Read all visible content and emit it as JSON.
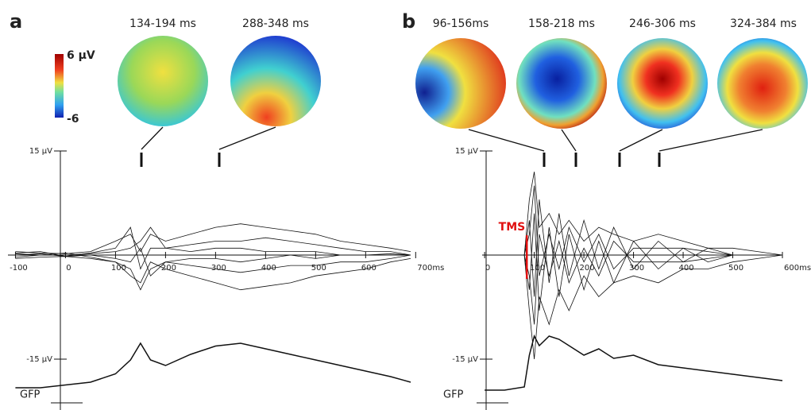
{
  "chart_data": [
    {
      "type": "line",
      "panel": "a",
      "x": [
        -100,
        -50,
        0,
        50,
        100,
        130,
        150,
        170,
        200,
        250,
        300,
        350,
        400,
        450,
        500,
        550,
        600,
        650,
        690
      ],
      "xlim": [
        -115,
        690
      ],
      "xticks": [
        -100,
        0,
        100,
        200,
        300,
        400,
        500,
        600,
        {
          "value": 700,
          "label": "700ms"
        }
      ],
      "ylim": [
        -15,
        15
      ],
      "yticks": [
        {
          "value": 15,
          "label": "15 µV"
        },
        {
          "value": -15,
          "label": "-15 µV"
        }
      ],
      "series": [
        {
          "color": "#111111",
          "values": [
            0.5,
            0.3,
            0.2,
            0.5,
            2,
            3,
            0.5,
            3,
            2,
            3,
            4,
            4.5,
            4,
            3.5,
            3,
            2,
            1.5,
            1,
            0.5
          ]
        },
        {
          "color": "#111111",
          "values": [
            -0.5,
            -0.3,
            -0.2,
            -0.5,
            -1,
            -3,
            -4,
            -1,
            -2,
            -3,
            -4,
            -5,
            -4.5,
            -4,
            -3,
            -2.5,
            -2,
            -1,
            -0.5
          ]
        },
        {
          "color": "#111111",
          "values": [
            0.3,
            0.5,
            -0.2,
            0.3,
            1,
            4,
            -2,
            1,
            1,
            1.5,
            2,
            2,
            2.5,
            2,
            1.5,
            1,
            0.5,
            0.5,
            0
          ]
        },
        {
          "color": "#111111",
          "values": [
            -0.3,
            0,
            0.3,
            -0.3,
            -1,
            -2,
            -5,
            -2,
            -1,
            -1.5,
            -2,
            -2.5,
            -2,
            -1.5,
            -1.5,
            -1,
            -1,
            -0.5,
            0
          ]
        },
        {
          "color": "#111111",
          "values": [
            0.2,
            0,
            0,
            0.2,
            0.5,
            1,
            2,
            4,
            1,
            0.5,
            1,
            1,
            0.5,
            0.5,
            0.5,
            0,
            0,
            0.2,
            0
          ]
        },
        {
          "color": "#111111",
          "values": [
            0,
            0.2,
            -0.2,
            0,
            -0.5,
            -1,
            1,
            -3,
            -1,
            -0.5,
            -0.5,
            -1,
            -0.5,
            0,
            -0.5,
            0,
            0,
            0,
            0
          ]
        }
      ],
      "gfp": {
        "name": "GFP",
        "values": [
          0.1,
          0.1,
          0.15,
          0.2,
          0.35,
          0.6,
          0.9,
          0.6,
          0.5,
          0.7,
          0.85,
          0.9,
          0.8,
          0.7,
          0.6,
          0.5,
          0.4,
          0.3,
          0.2
        ]
      },
      "topomaps": [
        "134-194 ms",
        "288-348 ms"
      ],
      "colorbar": {
        "max_label": "6 µV",
        "min_label": "-6"
      }
    },
    {
      "type": "line",
      "panel": "b",
      "x": [
        0,
        40,
        80,
        90,
        100,
        110,
        130,
        150,
        170,
        200,
        230,
        260,
        300,
        350,
        400,
        450,
        500,
        550,
        600
      ],
      "xlim": [
        -5,
        600
      ],
      "xticks": [
        0,
        100,
        200,
        300,
        400,
        500,
        {
          "value": 600,
          "label": "600ms"
        }
      ],
      "ylim": [
        -15,
        15
      ],
      "yticks": [
        {
          "value": 15,
          "label": "15 µV"
        },
        {
          "value": -15,
          "label": "-15 µV"
        }
      ],
      "series": [
        {
          "color": "#111111",
          "values": [
            0,
            0,
            0,
            8,
            12,
            4,
            6,
            3,
            5,
            2,
            4,
            3,
            2,
            3,
            2,
            1,
            1,
            0.5,
            0
          ]
        },
        {
          "color": "#111111",
          "values": [
            0,
            0,
            0,
            -8,
            -15,
            -6,
            -10,
            -5,
            -8,
            -3,
            -6,
            -4,
            -3,
            -4,
            -2,
            -2,
            -1,
            -0.5,
            0
          ]
        },
        {
          "color": "#111111",
          "values": [
            0,
            0,
            0,
            5,
            -6,
            8,
            -4,
            6,
            -3,
            5,
            -2,
            4,
            -2,
            2,
            -1,
            1,
            0,
            0,
            0
          ]
        },
        {
          "color": "#111111",
          "values": [
            0,
            0,
            0,
            -5,
            6,
            -8,
            4,
            -6,
            3,
            -5,
            2,
            -4,
            2,
            -2,
            1,
            -1,
            0,
            0,
            0
          ]
        },
        {
          "color": "#111111",
          "values": [
            0,
            0,
            0,
            3,
            10,
            -3,
            3,
            -2,
            4,
            -1,
            3,
            -2,
            1,
            1,
            1,
            0.5,
            0,
            0,
            0
          ]
        },
        {
          "color": "#111111",
          "values": [
            0,
            0,
            0,
            -3,
            -10,
            3,
            -3,
            2,
            -4,
            1,
            -3,
            2,
            -1,
            -1,
            -1,
            -0.5,
            0,
            0,
            0
          ]
        }
      ],
      "gfp": {
        "name": "GFP",
        "values": [
          0.05,
          0.05,
          0.1,
          0.6,
          0.9,
          0.75,
          0.9,
          0.85,
          0.75,
          0.6,
          0.7,
          0.55,
          0.6,
          0.45,
          0.4,
          0.35,
          0.3,
          0.25,
          0.2
        ]
      },
      "topomaps": [
        "96-156ms",
        "158-218 ms",
        "246-306 ms",
        "324-384 ms"
      ],
      "annotation": {
        "text": "TMS",
        "x": 85,
        "color": "#e01010"
      }
    }
  ]
}
